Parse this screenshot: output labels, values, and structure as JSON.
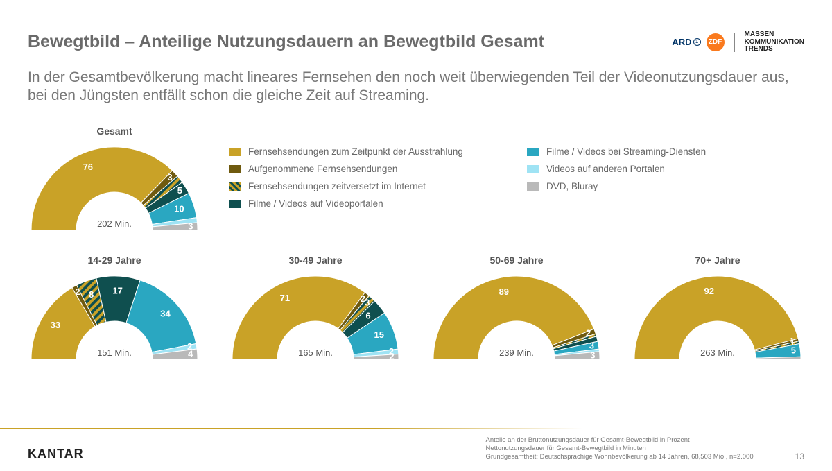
{
  "title": "Bewegtbild – Anteilige Nutzungsdauern an Bewegtbild Gesamt",
  "subtitle": "In der Gesamtbevölkerung macht lineares Fernsehen den noch weit überwiegenden Teil der Videonutzungsdauer aus, bei den Jüngsten entfällt schon die gleiche Zeit auf Streaming.",
  "logos": {
    "ard": "ARD",
    "zdf": "ZDF",
    "mkt_line1": "MASSEN",
    "mkt_line2": "KOMMUNIKATION",
    "mkt_line3": "TRENDS"
  },
  "categories": [
    {
      "key": "live_tv",
      "label": "Fernsehsendungen zum Zeitpunkt der Ausstrahlung",
      "color": "#c9a227",
      "hatch": false
    },
    {
      "key": "recorded_tv",
      "label": "Aufgenommene Fernsehsendungen",
      "color": "#6f5a0f",
      "hatch": false
    },
    {
      "key": "timeshift_net",
      "label": "Fernsehsendungen zeitversetzt im Internet",
      "color": "#c9a227",
      "hatch": true,
      "hatchColor": "#0f4f4f"
    },
    {
      "key": "videoportal",
      "label": "Filme / Videos auf Videoportalen",
      "color": "#0f4f4f",
      "hatch": false
    },
    {
      "key": "streaming",
      "label": "Filme / Videos bei Streaming-Diensten",
      "color": "#2aa7c1",
      "hatch": false
    },
    {
      "key": "other_portals",
      "label": "Videos auf anderen Portalen",
      "color": "#9fe3f4",
      "hatch": false
    },
    {
      "key": "dvd",
      "label": "DVD, Bluray",
      "color": "#b9b9b9",
      "hatch": false
    }
  ],
  "legend_layout": [
    [
      "live_tv",
      "streaming"
    ],
    [
      "recorded_tv",
      "other_portals"
    ],
    [
      "timeshift_net",
      "dvd"
    ],
    [
      "videoportal",
      null
    ]
  ],
  "charts": {
    "gesamt": {
      "title": "Gesamt",
      "minutes": "202 Min.",
      "segments": [
        {
          "cat": "live_tv",
          "value": 76,
          "label": "76"
        },
        {
          "cat": "recorded_tv",
          "value": 3,
          "label": "3"
        },
        {
          "cat": "timeshift_net",
          "value": 3,
          "label": null
        },
        {
          "cat": "videoportal",
          "value": 5,
          "label": "5"
        },
        {
          "cat": "streaming",
          "value": 10,
          "label": "10"
        },
        {
          "cat": "other_portals",
          "value": 2,
          "label": null
        },
        {
          "cat": "dvd",
          "value": 3,
          "label": "3"
        }
      ]
    },
    "age_14_29": {
      "title": "14-29 Jahre",
      "minutes": "151 Min.",
      "segments": [
        {
          "cat": "live_tv",
          "value": 33,
          "label": "33"
        },
        {
          "cat": "recorded_tv",
          "value": 2,
          "label": "2"
        },
        {
          "cat": "timeshift_net",
          "value": 8,
          "label": "8"
        },
        {
          "cat": "videoportal",
          "value": 17,
          "label": "17"
        },
        {
          "cat": "streaming",
          "value": 34,
          "label": "34"
        },
        {
          "cat": "other_portals",
          "value": 2,
          "label": "2"
        },
        {
          "cat": "dvd",
          "value": 4,
          "label": "4"
        }
      ]
    },
    "age_30_49": {
      "title": "30-49 Jahre",
      "minutes": "165 Min.",
      "segments": [
        {
          "cat": "live_tv",
          "value": 71,
          "label": "71"
        },
        {
          "cat": "recorded_tv",
          "value": 2,
          "label": "2"
        },
        {
          "cat": "timeshift_net",
          "value": 3,
          "label": "3"
        },
        {
          "cat": "videoportal",
          "value": 6,
          "label": "6"
        },
        {
          "cat": "streaming",
          "value": 15,
          "label": "15"
        },
        {
          "cat": "other_portals",
          "value": 2,
          "label": "2"
        },
        {
          "cat": "dvd",
          "value": 2,
          "label": "2"
        }
      ]
    },
    "age_50_69": {
      "title": "50-69 Jahre",
      "minutes": "239 Min.",
      "segments": [
        {
          "cat": "live_tv",
          "value": 89,
          "label": "89"
        },
        {
          "cat": "recorded_tv",
          "value": 2,
          "label": "2"
        },
        {
          "cat": "timeshift_net",
          "value": 1,
          "label": null
        },
        {
          "cat": "videoportal",
          "value": 2,
          "label": null
        },
        {
          "cat": "streaming",
          "value": 3,
          "label": "3"
        },
        {
          "cat": "other_portals",
          "value": 1,
          "label": null
        },
        {
          "cat": "dvd",
          "value": 3,
          "label": "3"
        }
      ]
    },
    "age_70_plus": {
      "title": "70+ Jahre",
      "minutes": "263 Min.",
      "segments": [
        {
          "cat": "live_tv",
          "value": 92,
          "label": "92"
        },
        {
          "cat": "recorded_tv",
          "value": 1,
          "label": "1"
        },
        {
          "cat": "timeshift_net",
          "value": 1,
          "label": "1"
        },
        {
          "cat": "videoportal",
          "value": 0,
          "label": null
        },
        {
          "cat": "streaming",
          "value": 5,
          "label": "5"
        },
        {
          "cat": "other_portals",
          "value": 0,
          "label": null
        },
        {
          "cat": "dvd",
          "value": 1,
          "label": null
        }
      ]
    }
  },
  "donut_style": {
    "outer_r": 120,
    "inner_r": 55,
    "label_r": 98,
    "label_fontsize": 13,
    "label_color": "#ffffff",
    "stroke": "#ffffff",
    "stroke_width": 1
  },
  "footer": {
    "brand": "KANTAR",
    "note_line1": "Anteile an der Bruttonutzungsdauer für Gesamt-Bewegtbild in Prozent",
    "note_line2": "Nettonutzungsdauer für Gesamt-Bewegtbild in Minuten",
    "note_line3": "Grundgesamtheit: Deutschsprachige Wohnbevölkerung ab 14 Jahren, 68,503 Mio., n=2.000",
    "page": "13"
  }
}
